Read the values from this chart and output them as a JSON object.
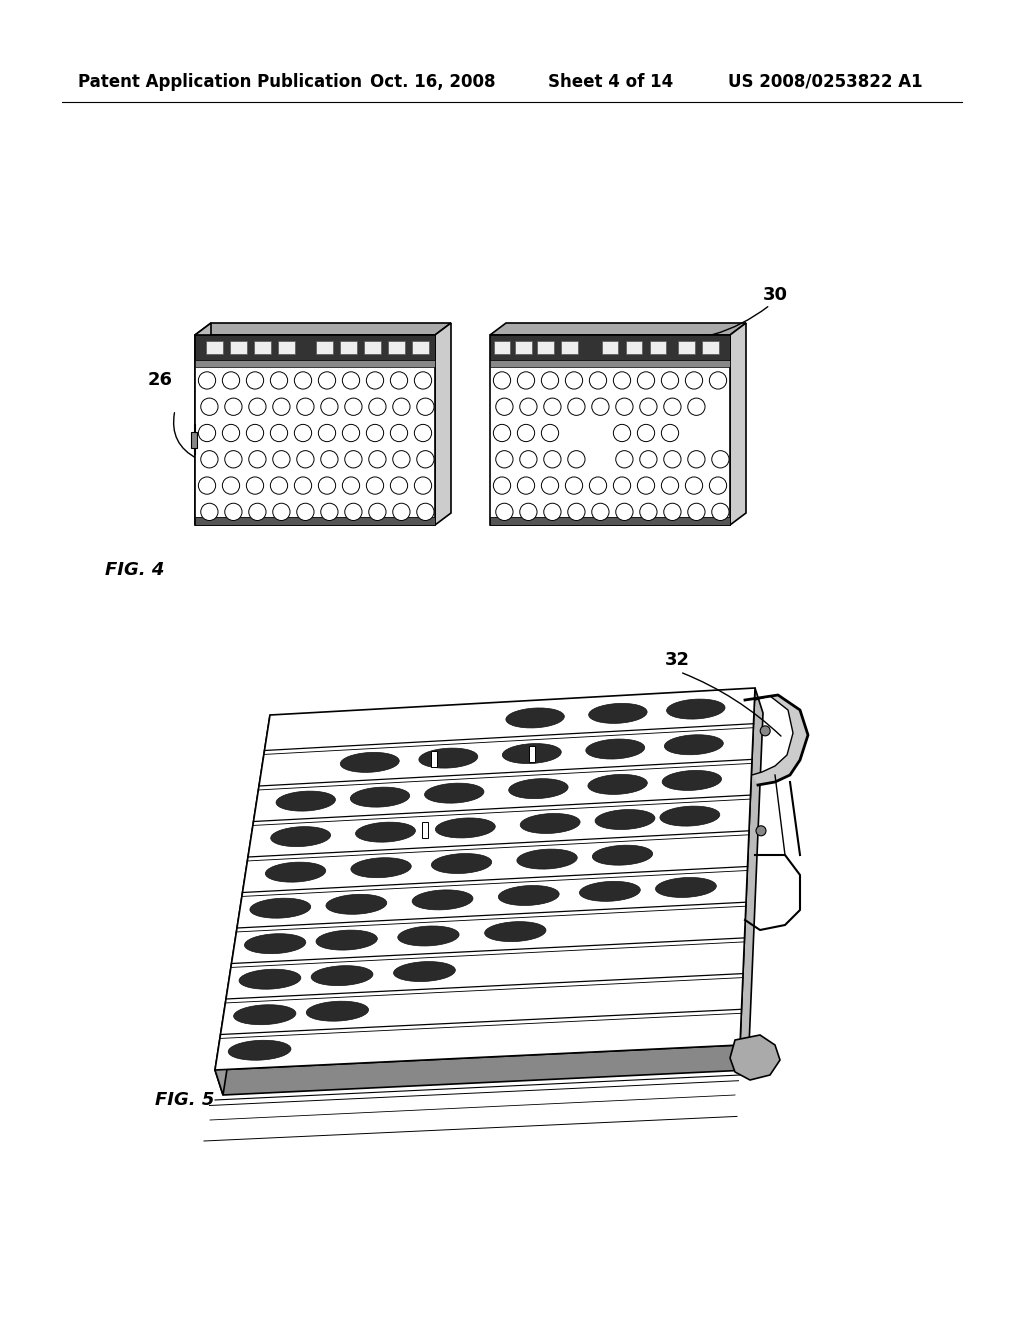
{
  "background_color": "#ffffff",
  "header_text": "Patent Application Publication",
  "header_date": "Oct. 16, 2008",
  "header_sheet": "Sheet 4 of 14",
  "header_patent": "US 2008/0253822 A1",
  "header_fontsize": 12,
  "fig4_label": "FIG. 4",
  "fig5_label": "FIG. 5",
  "ref26_label": "26",
  "ref30_label": "30",
  "ref32_label": "32"
}
